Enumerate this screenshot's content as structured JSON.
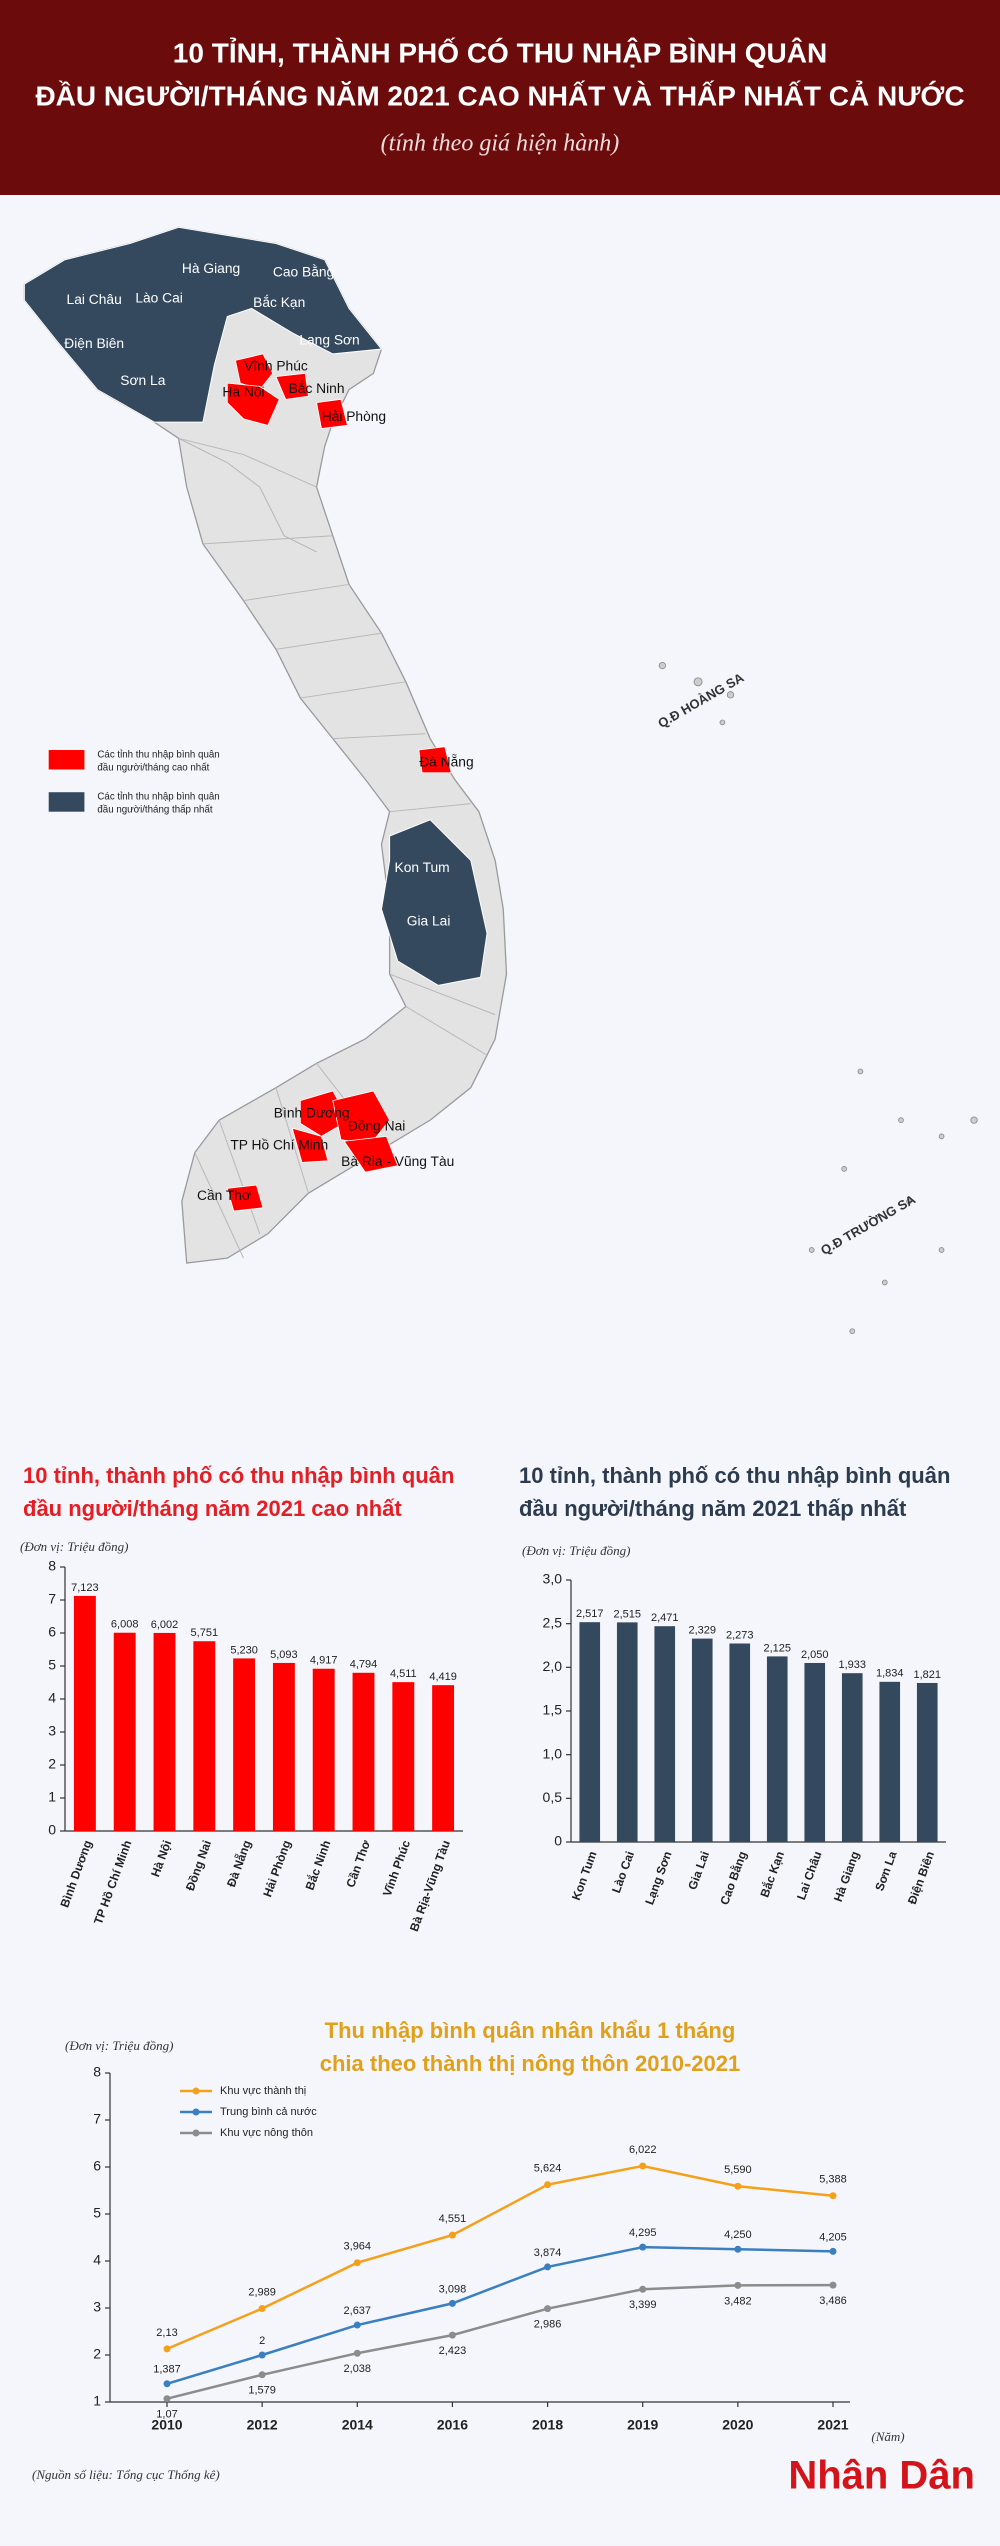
{
  "header": {
    "title": [
      "10 TỈNH, THÀNH PHỐ CÓ THU NHẬP BÌNH QUÂN",
      "ĐẦU NGƯỜI/THÁNG NĂM 2021 CAO NHẤT VÀ THẤP NHẤT CẢ NƯỚC"
    ],
    "subtitle": "(tính theo giá hiện hành)"
  },
  "map": {
    "labels": [
      "Hà Giang",
      "Cao Bằng",
      "Lai Châu",
      "Lào Cai",
      "Bắc Kạn",
      "Điện Biên",
      "Lạng Sơn",
      "Sơn La",
      "Vĩnh Phúc",
      "Bắc Ninh",
      "Hà Nội",
      "Hải Phòng",
      "Đà Nẵng",
      "Kon Tum",
      "Gia Lai",
      "Bình Dương",
      "Đồng Nai",
      "TP Hồ Chí Minh",
      "Bà Rịa - Vũng Tàu",
      "Cần Thơ"
    ],
    "islands": [
      "Q.Đ HOÀNG SA",
      "Q.Đ TRƯỜNG SA"
    ],
    "legend": [
      {
        "color": "#ff0000",
        "text": [
          "Các tỉnh thu nhập bình quân",
          "đầu người/tháng cao nhất"
        ]
      },
      {
        "color": "#34495e",
        "text": [
          "Các tỉnh thu nhập bình quân",
          "đầu người/tháng thấp nhất"
        ]
      }
    ]
  },
  "chart_data": [
    {
      "type": "bar",
      "title": [
        "10 tỉnh, thành phố có thu nhập bình quân",
        "đầu người/tháng năm 2021 cao nhất"
      ],
      "unit": "(Đơn vị: Triệu đồng)",
      "categories": [
        "Bình Dương",
        "TP Hồ Chí Minh",
        "Hà Nội",
        "Đồng Nai",
        "Đà Nẵng",
        "Hải Phòng",
        "Bắc Ninh",
        "Cần Thơ",
        "Vĩnh Phúc",
        "Bà Rịa-Vũng Tàu"
      ],
      "values": [
        7.123,
        6.008,
        6.002,
        5.751,
        5.23,
        5.093,
        4.917,
        4.794,
        4.511,
        4.419
      ],
      "value_labels": [
        "7,123",
        "6,008",
        "6,002",
        "5,751",
        "5,230",
        "5,093",
        "4,917",
        "4,794",
        "4,511",
        "4,419"
      ],
      "color": "#ff0000",
      "ylim": [
        0,
        8
      ],
      "yticks": [
        0,
        1,
        2,
        3,
        4,
        5,
        6,
        7,
        8
      ]
    },
    {
      "type": "bar",
      "title": [
        "10 tỉnh, thành phố có thu nhập bình quân",
        "đầu người/tháng năm 2021 thấp nhất"
      ],
      "unit": "(Đơn vị: Triệu đồng)",
      "categories": [
        "Kon Tum",
        "Lào Cai",
        "Lạng Sơn",
        "Gia Lai",
        "Cao Bằng",
        "Bắc Kạn",
        "Lai Châu",
        "Hà Giang",
        "Sơn La",
        "Điện Biên"
      ],
      "values": [
        2.517,
        2.515,
        2.471,
        2.329,
        2.273,
        2.125,
        2.05,
        1.933,
        1.834,
        1.821
      ],
      "value_labels": [
        "2,517",
        "2,515",
        "2,471",
        "2,329",
        "2,273",
        "2,125",
        "2,050",
        "1,933",
        "1,834",
        "1,821"
      ],
      "color": "#34495e",
      "ylim": [
        0,
        3
      ],
      "yticks": [
        0,
        {
          "value": 0.5,
          "label": "0,5"
        },
        {
          "value": 1,
          "label": "1,0"
        },
        {
          "value": 1.5,
          "label": "1,5"
        },
        {
          "value": 2,
          "label": "2,0"
        },
        {
          "value": 2.5,
          "label": "2,5"
        },
        {
          "value": 3,
          "label": "3,0"
        }
      ]
    },
    {
      "type": "line",
      "title": [
        "Thu nhập bình quân nhân khẩu 1 tháng",
        "chia theo thành thị nông thôn 2010-2021"
      ],
      "unit": "(Đơn vị: Triệu đồng)",
      "x_label": "(Năm)",
      "categories": [
        "2010",
        "2012",
        "2014",
        "2016",
        "2018",
        "2019",
        "2020",
        "2021"
      ],
      "series": [
        {
          "name": "Khu vực thành thị",
          "color": "#f5a01a",
          "values": [
            2.13,
            2.989,
            3.964,
            4.551,
            5.624,
            6.022,
            5.59,
            5.388
          ],
          "value_labels": [
            "2,13",
            "2,989",
            "3,964",
            "4,551",
            "5,624",
            "6,022",
            "5,590",
            "5,388"
          ]
        },
        {
          "name": "Trung bình cả nước",
          "color": "#3a7fc0",
          "values": [
            1.387,
            2,
            2.637,
            3.098,
            3.874,
            4.295,
            4.25,
            4.205
          ],
          "value_labels": [
            "1,387",
            "2",
            "2,637",
            "3,098",
            "3,874",
            "4,295",
            "4,250",
            "4,205"
          ]
        },
        {
          "name": "Khu vực nông thôn",
          "color": "#8c8c8c",
          "values": [
            1.07,
            1.579,
            2.038,
            2.423,
            2.986,
            3.399,
            3.482,
            3.486
          ],
          "value_labels": [
            "1,07",
            "1,579",
            "2,038",
            "2,423",
            "2,986",
            "3,399",
            "3,482",
            "3,486"
          ]
        }
      ],
      "ylim": [
        1,
        8
      ],
      "yticks": [
        1,
        2,
        3,
        4,
        5,
        6,
        7,
        8
      ]
    }
  ],
  "footer": {
    "source": "(Nguồn số liệu: Tổng cục Thống kê)",
    "logo": "Nhân Dân"
  }
}
